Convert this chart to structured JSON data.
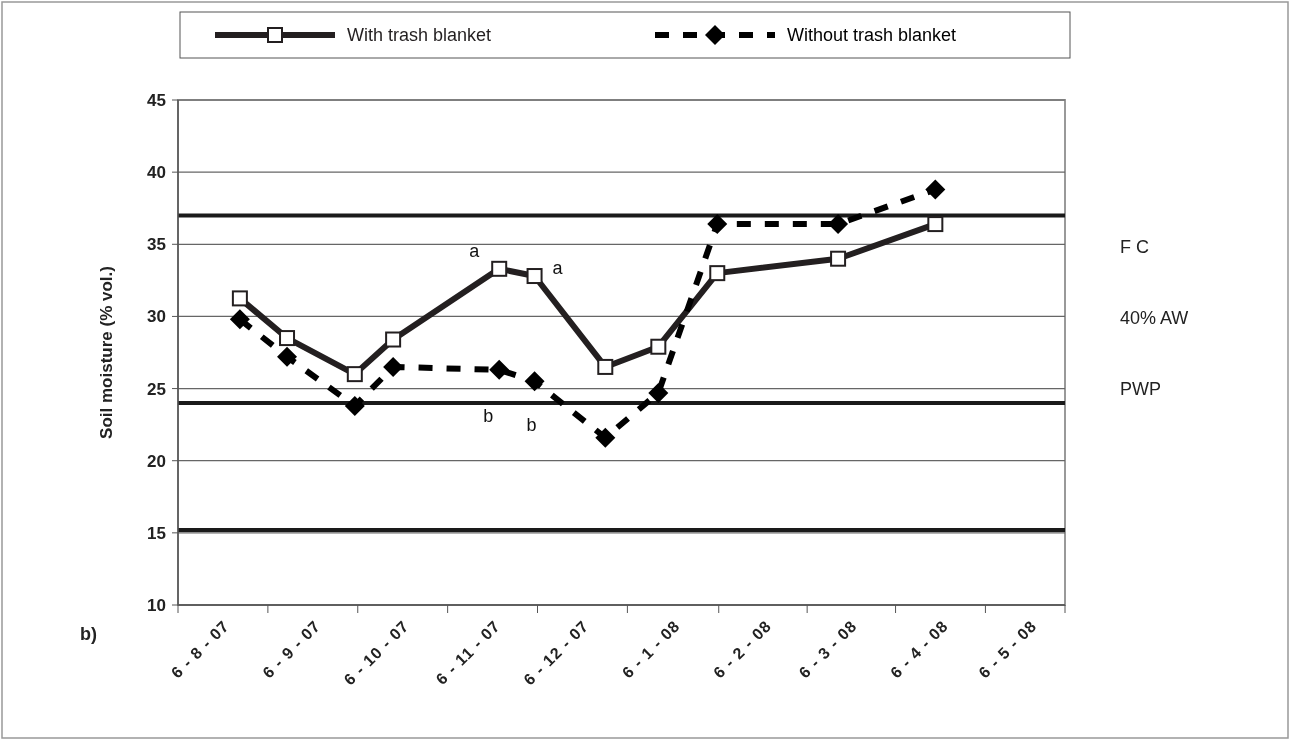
{
  "chart_data": {
    "type": "line",
    "ylabel": "Soil moisture (% vol.)",
    "x": [
      "2007-08-12",
      "2007-08-28",
      "2007-09-20",
      "2007-10-03",
      "2007-11-08",
      "2007-11-20",
      "2007-12-14",
      "2008-01-01",
      "2008-01-21",
      "2008-03-02",
      "2008-04-04"
    ],
    "series": [
      {
        "name": "With trash blanket",
        "color": "#231f20",
        "marker": "square",
        "line_style": "solid",
        "values": [
          31.25,
          28.5,
          26.0,
          28.4,
          33.3,
          32.8,
          26.5,
          27.9,
          33.0,
          34.0,
          36.4
        ]
      },
      {
        "name": "Without trash blanket",
        "color": "#000000",
        "marker": "diamond",
        "line_style": "dashed",
        "values": [
          29.8,
          27.2,
          23.8,
          26.5,
          26.3,
          25.5,
          21.6,
          24.7,
          36.4,
          36.4,
          38.8
        ]
      }
    ],
    "xlim": [
      "2007-07-22",
      "2008-05-18"
    ],
    "xticks": [
      {
        "value": "2007-08-06",
        "label": "6 - 8 - 07"
      },
      {
        "value": "2007-09-06",
        "label": "6 - 9 - 07"
      },
      {
        "value": "2007-10-06",
        "label": "6 - 10 - 07"
      },
      {
        "value": "2007-11-06",
        "label": "6 - 11 - 07"
      },
      {
        "value": "2007-12-06",
        "label": "6 - 12 - 07"
      },
      {
        "value": "2008-01-06",
        "label": "6 - 1 - 08"
      },
      {
        "value": "2008-02-06",
        "label": "6 - 2 - 08"
      },
      {
        "value": "2008-03-06",
        "label": "6 - 3 - 08"
      },
      {
        "value": "2008-04-06",
        "label": "6 - 4 - 08"
      },
      {
        "value": "2008-05-06",
        "label": "6 - 5 - 08"
      }
    ],
    "ylim": [
      10,
      45
    ],
    "yticks": [
      10,
      15,
      20,
      25,
      30,
      35,
      40,
      45
    ],
    "grid": "y",
    "legend": "top",
    "ref_lines": [
      {
        "axis": "y",
        "value": 37,
        "color": "#1a1a1a"
      },
      {
        "axis": "y",
        "value": 24,
        "color": "#1a1a1a"
      },
      {
        "axis": "y",
        "value": 15.2,
        "color": "#1a1a1a"
      }
    ],
    "annotations": [
      {
        "text": "a",
        "x": "2007-11-08",
        "y": 33.3
      },
      {
        "text": "a",
        "x": "2007-11-20",
        "y": 32.8
      },
      {
        "text": "b",
        "x": "2007-11-08",
        "y": 26.3
      },
      {
        "text": "b",
        "x": "2007-11-20",
        "y": 25.5
      },
      "F C",
      "40% AW",
      "PWP",
      "b)"
    ]
  }
}
